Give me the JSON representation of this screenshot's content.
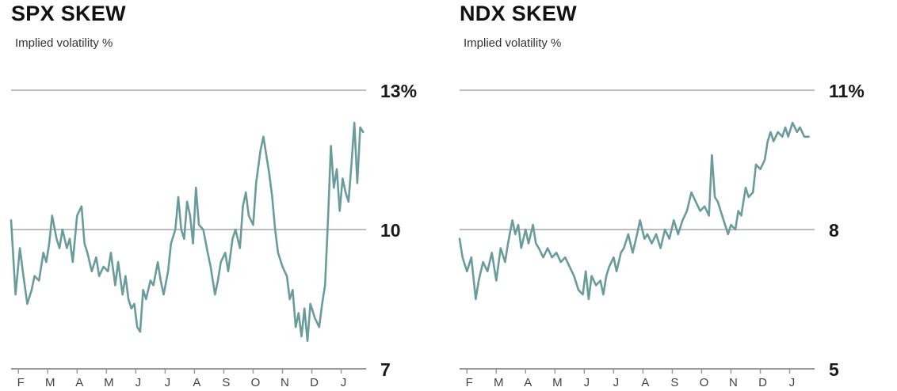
{
  "colors": {
    "line": "#6a9c9b",
    "grid": "#bdbdbd",
    "axis": "#9a9a9a",
    "text": "#1a1a1a"
  },
  "chart_data": [
    {
      "type": "line",
      "title": "SPX SKEW",
      "subtitle": "Implied volatility %",
      "grid": true,
      "ylim": [
        7,
        13
      ],
      "yticks": [
        {
          "value": 13,
          "label": "13%"
        },
        {
          "value": 10,
          "label": "10"
        },
        {
          "value": 7,
          "label": "7"
        }
      ],
      "xlim": [
        0,
        12.1
      ],
      "xticks": [
        {
          "value": 0.25,
          "label": "F"
        },
        {
          "value": 1.25,
          "label": "M"
        },
        {
          "value": 2.25,
          "label": "A"
        },
        {
          "value": 3.25,
          "label": "M"
        },
        {
          "value": 4.25,
          "label": "J"
        },
        {
          "value": 5.25,
          "label": "J"
        },
        {
          "value": 6.25,
          "label": "A"
        },
        {
          "value": 7.25,
          "label": "S"
        },
        {
          "value": 8.25,
          "label": "O"
        },
        {
          "value": 9.25,
          "label": "N"
        },
        {
          "value": 10.25,
          "label": "D"
        },
        {
          "value": 11.25,
          "label": "J"
        }
      ],
      "series": [
        {
          "x": [
            0.0,
            0.15,
            0.3,
            0.4,
            0.55,
            0.7,
            0.8,
            0.95,
            1.1,
            1.2,
            1.3,
            1.4,
            1.55,
            1.65,
            1.75,
            1.9,
            2.0,
            2.1,
            2.25,
            2.4,
            2.5,
            2.6,
            2.75,
            2.9,
            3.0,
            3.15,
            3.3,
            3.4,
            3.55,
            3.65,
            3.8,
            3.9,
            4.0,
            4.1,
            4.2,
            4.3,
            4.4,
            4.5,
            4.6,
            4.75,
            4.85,
            5.0,
            5.1,
            5.2,
            5.35,
            5.45,
            5.6,
            5.7,
            5.8,
            5.9,
            6.0,
            6.1,
            6.2,
            6.3,
            6.4,
            6.55,
            6.7,
            6.8,
            6.95,
            7.05,
            7.15,
            7.3,
            7.4,
            7.55,
            7.65,
            7.8,
            7.9,
            8.0,
            8.1,
            8.25,
            8.35,
            8.5,
            8.6,
            8.7,
            8.8,
            8.9,
            9.0,
            9.1,
            9.25,
            9.4,
            9.5,
            9.6,
            9.7,
            9.8,
            9.9,
            10.0,
            10.1,
            10.2,
            10.35,
            10.5,
            10.6,
            10.7,
            10.8,
            10.9,
            11.0,
            11.1,
            11.2,
            11.3,
            11.4,
            11.5,
            11.6,
            11.7,
            11.8,
            11.9,
            12.0
          ],
          "y": [
            10.2,
            8.6,
            9.6,
            9.1,
            8.4,
            8.7,
            9.0,
            8.9,
            9.5,
            9.3,
            9.7,
            10.3,
            9.8,
            9.6,
            10.0,
            9.6,
            9.8,
            9.3,
            10.3,
            10.5,
            9.7,
            9.5,
            9.1,
            9.4,
            9.0,
            9.2,
            9.1,
            9.5,
            8.8,
            9.3,
            8.6,
            9.0,
            8.5,
            8.3,
            8.4,
            7.9,
            7.8,
            8.7,
            8.5,
            8.9,
            8.8,
            9.3,
            8.9,
            8.6,
            9.1,
            9.7,
            10.0,
            10.7,
            10.0,
            9.8,
            10.6,
            10.3,
            9.7,
            10.9,
            10.1,
            10.0,
            9.5,
            9.2,
            8.6,
            8.9,
            9.3,
            9.5,
            9.1,
            9.8,
            10.0,
            9.6,
            10.5,
            10.8,
            10.3,
            10.1,
            11.0,
            11.7,
            12.0,
            11.6,
            11.2,
            10.7,
            10.0,
            9.5,
            9.2,
            9.0,
            8.5,
            8.7,
            7.9,
            8.2,
            7.7,
            8.3,
            7.6,
            8.4,
            8.1,
            7.9,
            8.4,
            8.8,
            10.2,
            11.8,
            10.9,
            11.3,
            10.4,
            11.1,
            10.8,
            10.6,
            11.4,
            12.3,
            11.0,
            12.2,
            12.1
          ]
        }
      ]
    },
    {
      "type": "line",
      "title": "NDX SKEW",
      "subtitle": "Implied volatility %",
      "grid": true,
      "ylim": [
        5,
        11
      ],
      "yticks": [
        {
          "value": 11,
          "label": "11%"
        },
        {
          "value": 8,
          "label": "8"
        },
        {
          "value": 5,
          "label": "5"
        }
      ],
      "xlim": [
        0,
        12.1
      ],
      "xticks": [
        {
          "value": 0.25,
          "label": "F"
        },
        {
          "value": 1.25,
          "label": "M"
        },
        {
          "value": 2.25,
          "label": "A"
        },
        {
          "value": 3.25,
          "label": "M"
        },
        {
          "value": 4.25,
          "label": "J"
        },
        {
          "value": 5.25,
          "label": "J"
        },
        {
          "value": 6.25,
          "label": "A"
        },
        {
          "value": 7.25,
          "label": "S"
        },
        {
          "value": 8.25,
          "label": "O"
        },
        {
          "value": 9.25,
          "label": "N"
        },
        {
          "value": 10.25,
          "label": "D"
        },
        {
          "value": 11.25,
          "label": "J"
        }
      ],
      "series": [
        {
          "x": [
            0.0,
            0.1,
            0.25,
            0.4,
            0.55,
            0.65,
            0.8,
            0.95,
            1.1,
            1.25,
            1.4,
            1.55,
            1.65,
            1.8,
            1.9,
            2.0,
            2.1,
            2.25,
            2.35,
            2.5,
            2.6,
            2.7,
            2.85,
            3.0,
            3.15,
            3.3,
            3.45,
            3.6,
            3.75,
            3.9,
            4.05,
            4.2,
            4.3,
            4.4,
            4.5,
            4.65,
            4.8,
            4.9,
            5.0,
            5.1,
            5.25,
            5.35,
            5.5,
            5.6,
            5.75,
            5.9,
            6.05,
            6.15,
            6.3,
            6.4,
            6.55,
            6.7,
            6.85,
            7.0,
            7.15,
            7.3,
            7.45,
            7.6,
            7.75,
            7.9,
            8.05,
            8.2,
            8.35,
            8.5,
            8.6,
            8.7,
            8.8,
            8.9,
            9.0,
            9.15,
            9.25,
            9.4,
            9.5,
            9.6,
            9.75,
            9.85,
            10.0,
            10.1,
            10.25,
            10.4,
            10.5,
            10.6,
            10.7,
            10.85,
            11.0,
            11.1,
            11.2,
            11.35,
            11.5,
            11.6,
            11.75,
            11.9
          ],
          "y": [
            7.8,
            7.4,
            7.1,
            7.4,
            6.5,
            6.9,
            7.3,
            7.1,
            7.5,
            6.9,
            7.6,
            7.3,
            7.7,
            8.2,
            7.9,
            8.1,
            7.6,
            8.0,
            7.7,
            8.1,
            7.7,
            7.6,
            7.4,
            7.6,
            7.4,
            7.5,
            7.3,
            7.4,
            7.2,
            7.0,
            6.7,
            6.6,
            7.1,
            6.5,
            7.0,
            6.8,
            6.9,
            6.6,
            7.0,
            7.2,
            7.4,
            7.1,
            7.5,
            7.6,
            7.9,
            7.5,
            7.9,
            8.2,
            7.8,
            7.9,
            7.7,
            7.9,
            7.6,
            8.0,
            7.8,
            8.2,
            7.9,
            8.2,
            8.4,
            8.8,
            8.6,
            8.4,
            8.5,
            8.3,
            9.6,
            8.7,
            8.6,
            8.4,
            8.2,
            7.9,
            8.1,
            8.0,
            8.4,
            8.3,
            8.9,
            8.7,
            8.8,
            9.4,
            9.3,
            9.5,
            9.9,
            10.1,
            9.9,
            10.1,
            10.0,
            10.2,
            10.0,
            10.3,
            10.1,
            10.2,
            10.0,
            10.0
          ]
        }
      ]
    }
  ]
}
